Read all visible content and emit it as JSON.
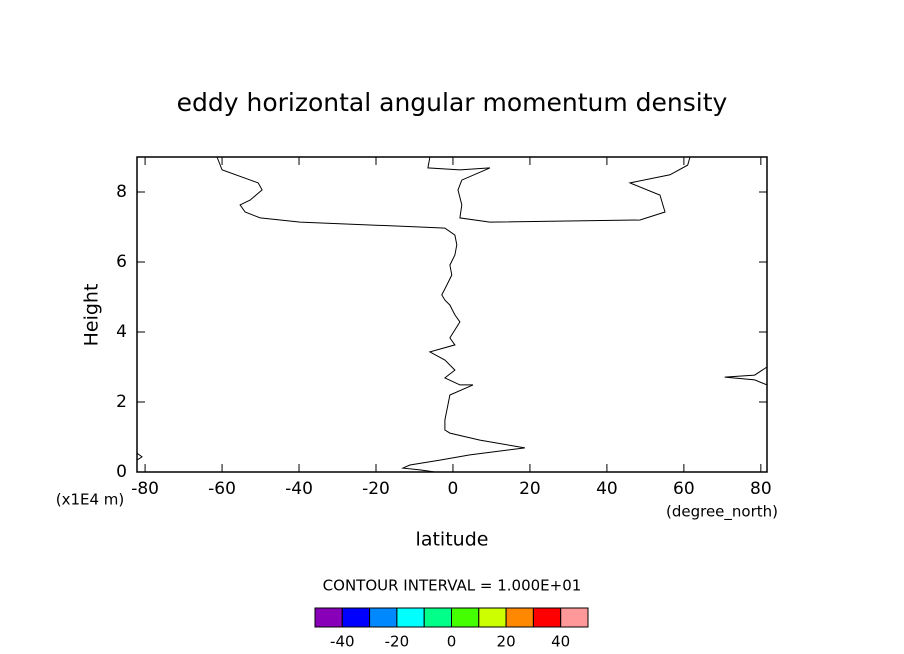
{
  "chart_data": {
    "type": "contour",
    "title": "eddy horizontal angular momentum density",
    "x_label": "latitude",
    "y_label": "Height",
    "x_unit": "(degree_north)",
    "y_unit": "(x1E4 m)",
    "xlim": [
      -82.1,
      81.6
    ],
    "ylim": [
      0,
      9
    ],
    "xticks": [
      -80,
      -60,
      -40,
      -20,
      0,
      20,
      40,
      60,
      80
    ],
    "yticks": [
      0,
      2,
      4,
      6,
      8
    ],
    "line_color": "#000000",
    "lines": [
      {
        "x": [
          -61.3,
          -60,
          -50.6,
          -49.6,
          -52.7,
          -55.3,
          -54,
          -50.1,
          -44.9,
          -39.7,
          -8.6,
          -2.1,
          0.5,
          1,
          0.5,
          -0.8,
          -0.3,
          -1.6,
          -2.9,
          -2.1,
          -0.8,
          0.5,
          1.8,
          0.5,
          -0.8,
          0.5,
          -6,
          -2.1,
          0.5,
          -2.1,
          1.8,
          5.2,
          -0.8,
          -2.1,
          -2.1,
          -0.8,
          7,
          18.7,
          4.4,
          -3.4,
          -11.2,
          -13,
          -8.6,
          -4.7
        ],
        "y": [
          9,
          8.63,
          8.26,
          8.06,
          7.77,
          7.63,
          7.43,
          7.26,
          7.2,
          7.14,
          7,
          6.97,
          6.77,
          6.49,
          6.2,
          5.91,
          5.63,
          5.34,
          5.06,
          4.91,
          4.77,
          4.49,
          4.29,
          4.06,
          3.83,
          3.63,
          3.43,
          3.2,
          2.91,
          2.69,
          2.49,
          2.49,
          2.2,
          1.49,
          1.2,
          1.11,
          0.91,
          0.69,
          0.49,
          0.34,
          0.2,
          0.11,
          0.06,
          0
        ]
      },
      {
        "x": [
          -6,
          -6.5,
          1.8,
          9.6,
          2.3,
          1.3,
          2.3,
          1.8,
          9.6,
          48.6,
          55.1,
          53.8,
          47.3,
          46,
          56.4,
          61,
          61.6
        ],
        "y": [
          9,
          8.69,
          8.63,
          8.69,
          8.34,
          8.06,
          7.63,
          7.26,
          7.14,
          7.2,
          7.43,
          7.91,
          8.2,
          8.26,
          8.49,
          8.77,
          9
        ]
      },
      {
        "x": [
          81.6,
          78.4,
          70.6,
          78.4,
          81.6
        ],
        "y": [
          3,
          2.77,
          2.71,
          2.63,
          2.49
        ]
      },
      {
        "x": [
          -82.1,
          -80.8,
          -82.1
        ],
        "y": [
          0.54,
          0.43,
          0.34
        ]
      }
    ],
    "contour_interval_label": "CONTOUR INTERVAL = 1.000E+01",
    "colorbar": {
      "lim": [
        -50,
        50
      ],
      "ticks": [
        -40,
        -20,
        0,
        20,
        40
      ],
      "colors": [
        "#8800b8",
        "#0000ff",
        "#0088ff",
        "#00ffff",
        "#00ff88",
        "#44ff00",
        "#ccff00",
        "#ff8800",
        "#ff0000",
        "#ff9999"
      ]
    }
  }
}
